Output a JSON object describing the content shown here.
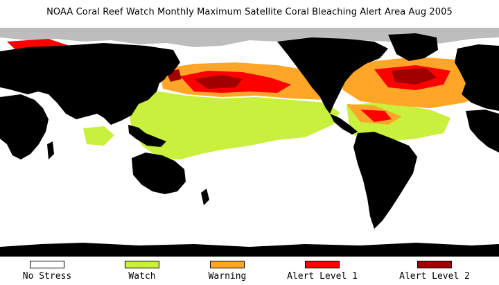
{
  "title": "NOAA Coral Reef Watch Monthly Maximum Satellite Coral Bleaching Alert Area    Aug 2005",
  "colors": {
    "land": "#000000",
    "no_stress": "#ffffff",
    "watch": "#c8f03c",
    "warning": "#ffa628",
    "alert1": "#ff0000",
    "alert2": "#a00000",
    "ice": "#bdbdbd"
  },
  "legend": [
    {
      "label": "No Stress",
      "color": "#ffffff"
    },
    {
      "label": "Watch",
      "color": "#c8f03c"
    },
    {
      "label": "Warning",
      "color": "#ffa628"
    },
    {
      "label": "Alert Level 1",
      "color": "#ff0000"
    },
    {
      "label": "Alert Level 2",
      "color": "#a00000"
    }
  ]
}
